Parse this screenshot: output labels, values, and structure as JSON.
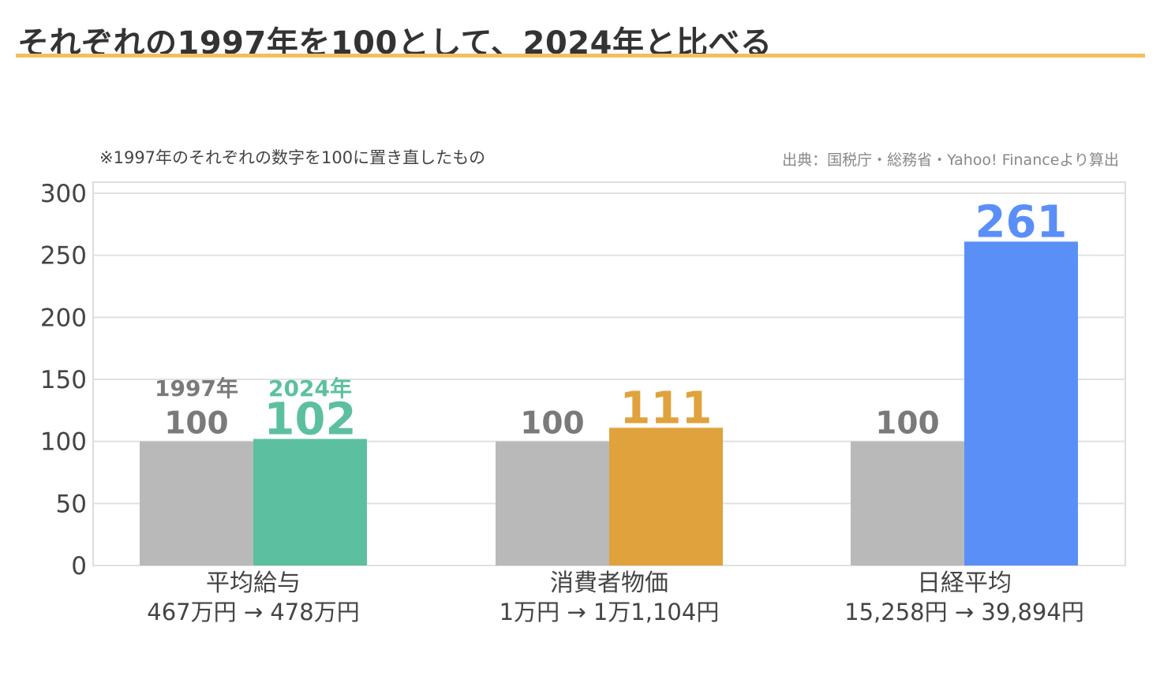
{
  "title": "それぞれの1997年を100として、2024年と比べる",
  "note": "※1997年のそれぞれの数字を100に置き直したもの",
  "source": "出典：国税庁・総務省・Yahoo! Financeより算出",
  "colors": {
    "accent_rule": "#f2be5f",
    "base_bar": "#b9b9b9",
    "base_label": "#7a7a7a",
    "salary": "#5cc0a0",
    "cpi": "#e0a23c",
    "nikkei": "#5a8ff8"
  },
  "chart_data": {
    "type": "bar",
    "categories": [
      "平均給与",
      "消費者物価",
      "日経平均"
    ],
    "category_sublabels": [
      "467万円 → 478万円",
      "1万円 → 1万1,104円",
      "15,258円 → 39,894円"
    ],
    "series": [
      {
        "name": "1997年",
        "values": [
          100,
          100,
          100
        ]
      },
      {
        "name": "2024年",
        "values": [
          102,
          111,
          261
        ]
      }
    ],
    "value_labels_base": [
      "100",
      "100",
      "100"
    ],
    "value_labels_current": [
      "102",
      "111",
      "261"
    ],
    "ylim": [
      0,
      300
    ],
    "yticks": [
      0,
      50,
      100,
      150,
      200,
      250,
      300
    ],
    "grid": true
  }
}
